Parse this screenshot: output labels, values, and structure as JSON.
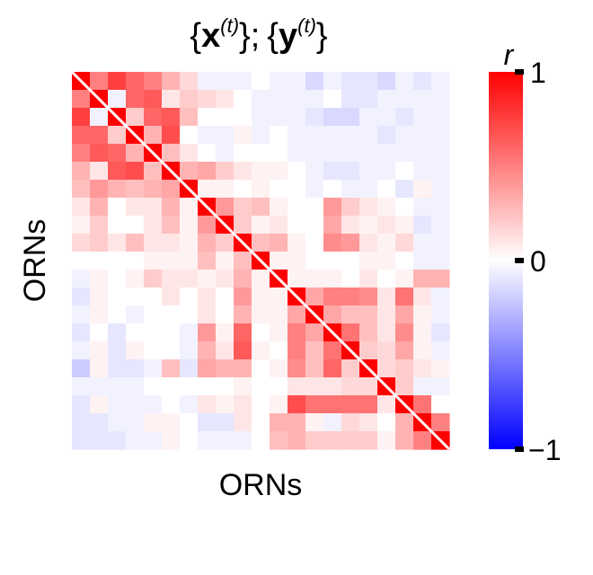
{
  "chart_data": {
    "type": "heatmap",
    "title_parts": {
      "x_symbol": "x",
      "y_symbol": "y",
      "superscript": "(t)",
      "open_brace": "{",
      "close_brace": "}",
      "separator": ";"
    },
    "xlabel": "ORNs",
    "ylabel": "ORNs",
    "colorbar": {
      "label": "r",
      "range": [
        -1,
        1
      ],
      "colors": {
        "low": "#0000ff",
        "mid": "#ffffff",
        "high": "#ff0000"
      },
      "ticks": [
        {
          "value": 1,
          "label": "1"
        },
        {
          "value": 0,
          "label": "0"
        },
        {
          "value": -1,
          "label": "−1"
        }
      ]
    },
    "size": 21,
    "diagonal_line": true,
    "matrix": [
      [
        1.0,
        0.5,
        0.75,
        0.6,
        0.5,
        0.3,
        0.15,
        -0.05,
        -0.05,
        -0.05,
        0.0,
        -0.05,
        -0.05,
        -0.15,
        -0.05,
        -0.1,
        -0.1,
        -0.15,
        -0.05,
        -0.1,
        -0.05
      ],
      [
        0.5,
        1.0,
        -0.05,
        0.6,
        0.65,
        0.1,
        0.2,
        0.15,
        0.1,
        0.0,
        -0.05,
        -0.05,
        -0.05,
        -0.05,
        0.0,
        -0.1,
        -0.1,
        -0.05,
        -0.05,
        -0.05,
        -0.05
      ],
      [
        0.75,
        -0.05,
        1.0,
        0.2,
        0.6,
        0.65,
        0.25,
        0.0,
        0.0,
        0.0,
        -0.05,
        -0.05,
        -0.05,
        -0.1,
        -0.15,
        -0.15,
        -0.05,
        -0.05,
        -0.1,
        -0.05,
        -0.05
      ],
      [
        0.6,
        0.6,
        0.2,
        1.0,
        0.3,
        0.7,
        0.0,
        -0.05,
        -0.05,
        0.05,
        -0.05,
        0.0,
        -0.05,
        -0.05,
        -0.05,
        -0.05,
        -0.05,
        -0.1,
        -0.05,
        -0.05,
        -0.05
      ],
      [
        0.5,
        0.65,
        0.6,
        0.3,
        1.0,
        0.25,
        0.1,
        0.0,
        -0.05,
        0.0,
        0.0,
        0.0,
        -0.05,
        -0.05,
        -0.05,
        -0.05,
        -0.05,
        -0.05,
        -0.05,
        -0.05,
        -0.05
      ],
      [
        0.3,
        0.1,
        0.65,
        0.7,
        0.25,
        1.0,
        0.3,
        0.35,
        0.2,
        0.1,
        0.05,
        0.05,
        0.0,
        -0.05,
        -0.1,
        -0.1,
        -0.05,
        -0.05,
        0.0,
        -0.05,
        -0.05
      ],
      [
        0.25,
        0.4,
        0.3,
        0.25,
        0.3,
        0.35,
        1.0,
        0.05,
        0.05,
        0.0,
        0.05,
        0.0,
        0.0,
        -0.05,
        0.0,
        -0.05,
        -0.05,
        0.0,
        -0.1,
        0.05,
        -0.05
      ],
      [
        0.1,
        0.3,
        0.0,
        0.1,
        0.1,
        0.3,
        0.05,
        1.0,
        0.4,
        0.2,
        0.25,
        0.05,
        0.0,
        0.0,
        0.4,
        0.2,
        0.1,
        0.05,
        0.0,
        -0.05,
        -0.05
      ],
      [
        0.05,
        0.2,
        0.0,
        0.0,
        0.1,
        0.25,
        0.05,
        0.4,
        1.0,
        0.2,
        0.05,
        0.1,
        0.0,
        0.0,
        0.35,
        0.1,
        0.05,
        0.1,
        0.05,
        -0.1,
        -0.05
      ],
      [
        0.15,
        0.2,
        0.1,
        0.25,
        0.1,
        0.1,
        0.05,
        0.3,
        0.2,
        1.0,
        0.25,
        0.3,
        0.05,
        0.0,
        0.45,
        0.4,
        0.1,
        0.05,
        0.15,
        -0.05,
        -0.05
      ],
      [
        0.0,
        0.0,
        0.0,
        0.0,
        0.05,
        0.05,
        0.05,
        0.25,
        0.05,
        0.25,
        1.0,
        0.05,
        0.05,
        0.0,
        0.0,
        0.0,
        0.05,
        0.05,
        0.0,
        -0.05,
        -0.05
      ],
      [
        -0.05,
        0.05,
        0.0,
        0.05,
        0.2,
        0.1,
        0.1,
        0.05,
        0.1,
        0.3,
        0.05,
        1.0,
        0.05,
        0.05,
        0.05,
        0.0,
        0.1,
        0.0,
        0.05,
        0.3,
        0.3
      ],
      [
        -0.1,
        0.05,
        0.0,
        0.0,
        0.0,
        0.1,
        0.0,
        0.1,
        0.0,
        0.4,
        0.05,
        0.05,
        1.0,
        0.35,
        0.5,
        0.5,
        0.45,
        0.1,
        0.55,
        0.1,
        -0.05
      ],
      [
        -0.05,
        0.05,
        0.0,
        -0.05,
        0.0,
        0.0,
        0.0,
        0.1,
        0.0,
        0.3,
        0.05,
        0.05,
        0.35,
        1.0,
        0.35,
        0.25,
        0.25,
        0.1,
        0.35,
        0.05,
        -0.05
      ],
      [
        -0.1,
        0.0,
        -0.1,
        0.0,
        0.0,
        0.0,
        -0.05,
        0.4,
        0.05,
        0.6,
        0.0,
        0.05,
        0.5,
        0.35,
        1.0,
        0.55,
        0.25,
        0.1,
        0.45,
        0.05,
        -0.1
      ],
      [
        -0.05,
        0.05,
        -0.1,
        0.05,
        0.0,
        0.0,
        -0.05,
        0.3,
        0.1,
        0.65,
        0.05,
        0.0,
        0.5,
        0.25,
        0.55,
        1.0,
        0.2,
        0.15,
        0.35,
        0.05,
        -0.05
      ],
      [
        -0.2,
        0.05,
        -0.1,
        -0.1,
        -0.05,
        0.25,
        -0.1,
        0.35,
        0.3,
        0.3,
        0.0,
        0.05,
        0.45,
        0.25,
        0.6,
        0.2,
        1.0,
        0.15,
        0.2,
        0.1,
        0.05
      ],
      [
        -0.05,
        -0.05,
        -0.05,
        -0.05,
        0.0,
        0.0,
        0.0,
        0.0,
        0.0,
        0.05,
        0.0,
        0.0,
        0.1,
        0.1,
        0.1,
        0.15,
        0.15,
        1.0,
        0.2,
        -0.05,
        -0.05
      ],
      [
        -0.1,
        0.05,
        -0.05,
        -0.05,
        -0.05,
        0.0,
        -0.05,
        0.1,
        0.05,
        0.1,
        0.0,
        0.05,
        0.7,
        0.55,
        0.55,
        0.55,
        0.55,
        0.1,
        1.0,
        0.55,
        0.0
      ],
      [
        -0.1,
        -0.1,
        -0.05,
        -0.05,
        0.05,
        0.05,
        0.0,
        -0.1,
        -0.1,
        0.1,
        0.0,
        0.3,
        0.3,
        0.05,
        -0.05,
        0.15,
        0.1,
        0.0,
        0.3,
        1.0,
        0.5
      ],
      [
        -0.1,
        -0.1,
        -0.1,
        -0.05,
        -0.05,
        0.05,
        0.0,
        -0.05,
        -0.05,
        -0.05,
        0.0,
        0.25,
        0.3,
        0.2,
        0.2,
        0.2,
        0.2,
        0.05,
        0.3,
        0.5,
        1.0
      ]
    ]
  }
}
